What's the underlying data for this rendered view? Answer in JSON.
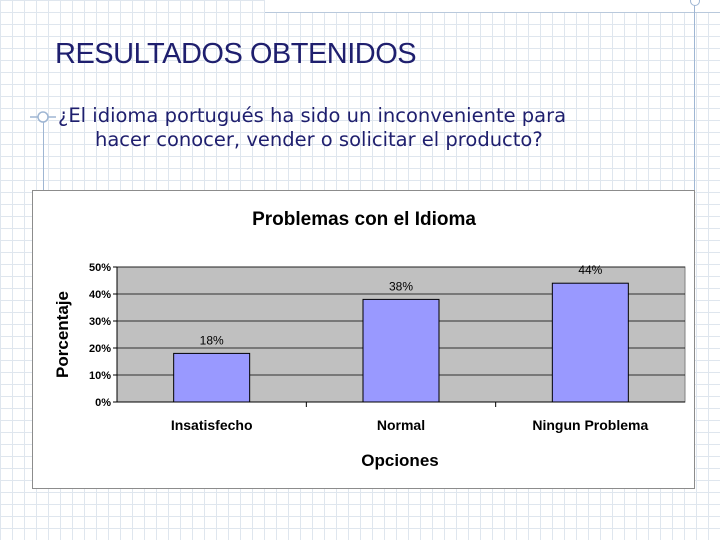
{
  "slide": {
    "title": "RESULTADOS OBTENIDOS",
    "question_line1": "¿El idioma portugués ha sido un inconveniente para",
    "question_line2": "hacer conocer, vender o solicitar el producto?"
  },
  "chart_data": {
    "type": "bar",
    "title": "Problemas con el Idioma",
    "xlabel": "Opciones",
    "ylabel": "Porcentaje",
    "categories": [
      "Insatisfecho",
      "Normal",
      "Ningun Problema"
    ],
    "values": [
      18,
      38,
      44
    ],
    "data_labels": [
      "18%",
      "38%",
      "44%"
    ],
    "ylim": [
      0,
      50
    ],
    "yticks": [
      0,
      10,
      20,
      30,
      40,
      50
    ],
    "ytick_labels": [
      "0%",
      "10%",
      "20%",
      "30%",
      "40%",
      "50%"
    ],
    "grid": true,
    "colors": {
      "bar": "#9999ff",
      "plot_bg": "#c0c0c0",
      "grid": "#000000"
    }
  }
}
